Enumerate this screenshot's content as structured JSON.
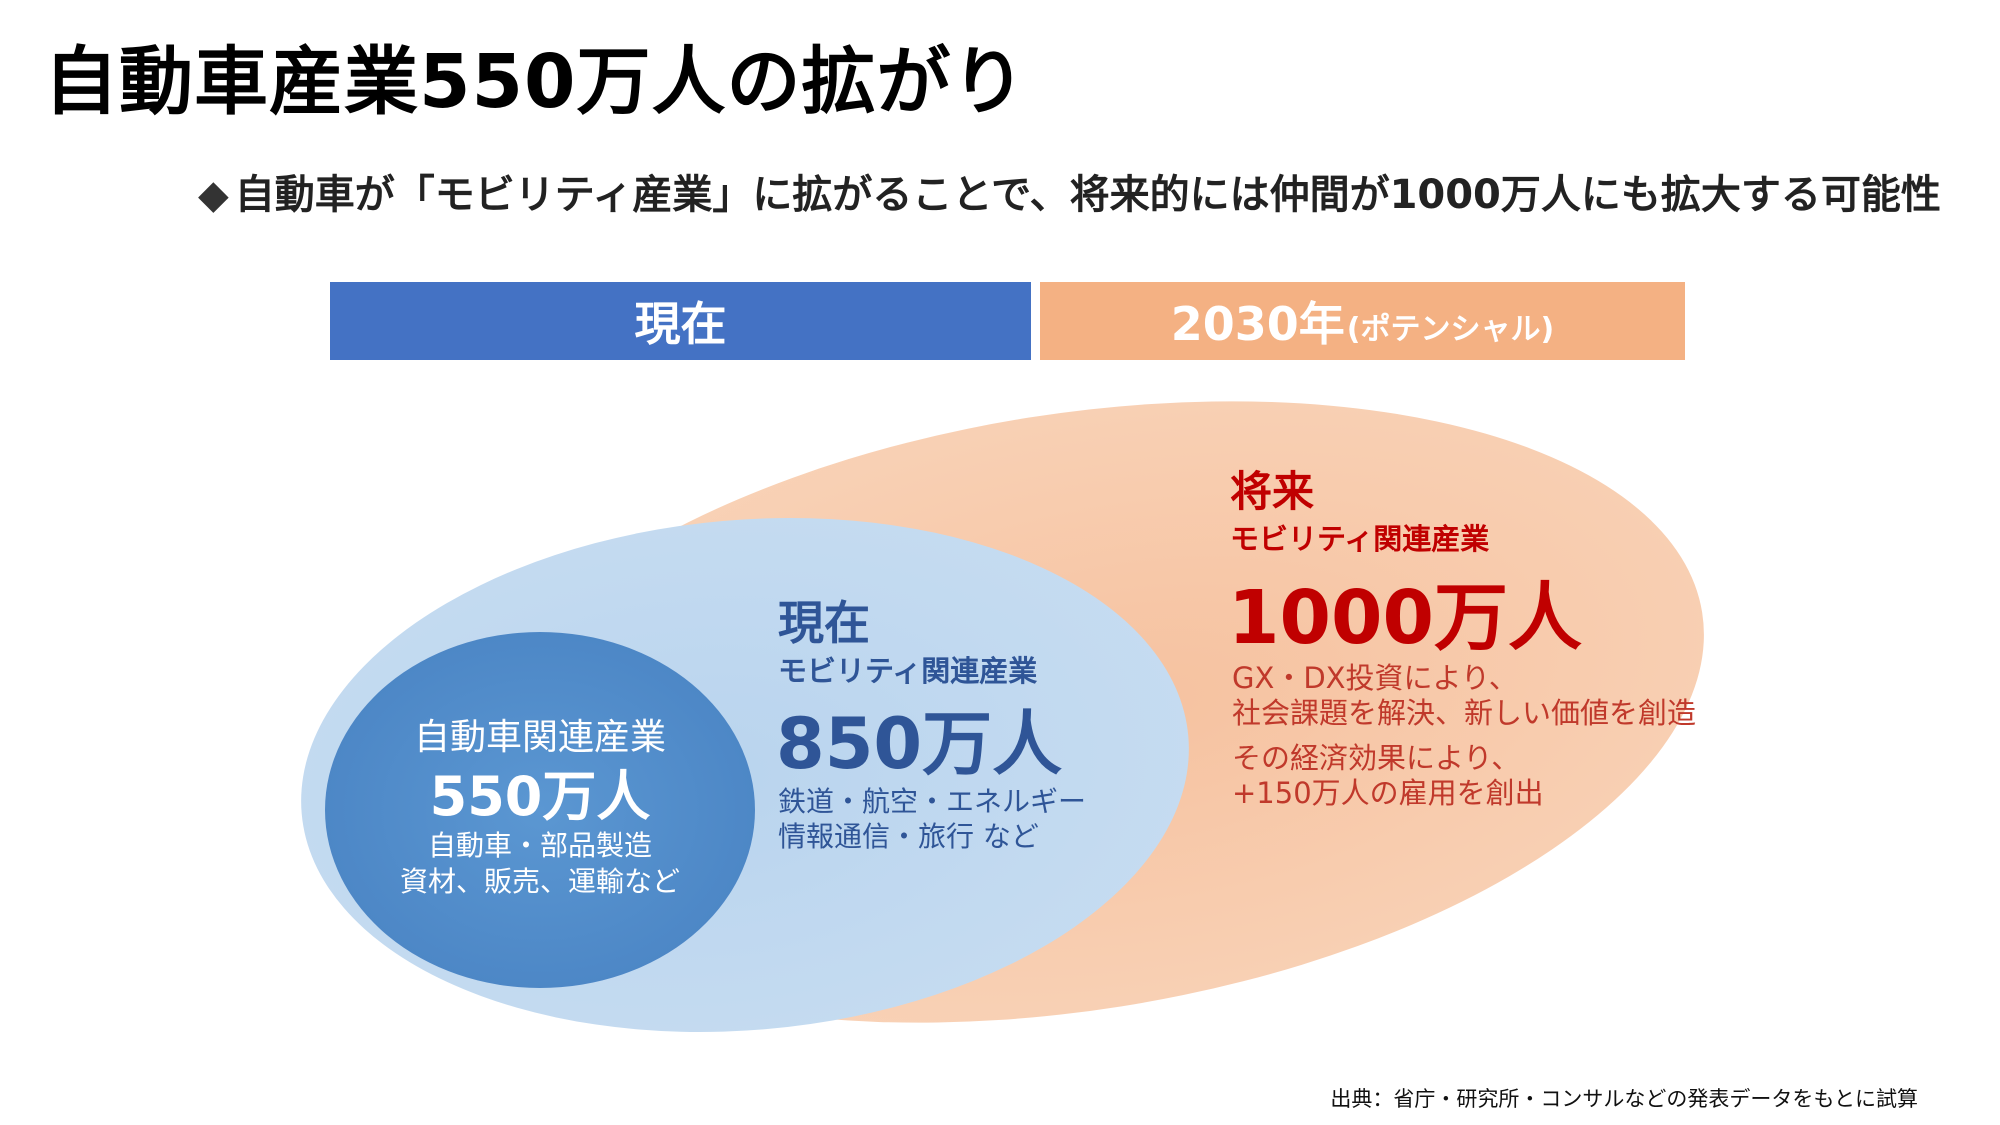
{
  "title": "自動車産業550万人の拡がり",
  "subtitle": {
    "bullet": "◆",
    "text": "自動車が「モビリティ産業」に拡がることで、将来的には仲間が1000万人にも拡大する可能性"
  },
  "headers": {
    "current": "現在",
    "future_main": "2030年",
    "future_suffix": "(ポテンシャル)"
  },
  "colors": {
    "current_bar": "#4472c4",
    "future_bar": "#f4b183",
    "outer_ellipse": "#f8c9a8",
    "middle_ellipse": "#bdd7ee",
    "inner_ellipse": "#4a86c8",
    "future_text": "#c00000",
    "current_text": "#2f5597"
  },
  "outer": {
    "label1": "将来",
    "label2": "モビリティ関連産業",
    "value": "1000万人",
    "desc1_line1": "GX・DX投資により、",
    "desc1_line2": "社会課題を解決、新しい価値を創造",
    "desc2_line1": "その経済効果により、",
    "desc2_line2": "+150万人の雇用を創出"
  },
  "middle": {
    "label1": "現在",
    "label2": "モビリティ関連産業",
    "value": "850万人",
    "desc_line1": "鉄道・航空・エネルギー",
    "desc_line2": "情報通信・旅行 など"
  },
  "inner": {
    "label": "自動車関連産業",
    "value": "550万人",
    "desc_line1": "自動車・部品製造",
    "desc_line2": "資材、販売、運輸など"
  },
  "source": "出典：省庁・研究所・コンサルなどの発表データをもとに試算"
}
